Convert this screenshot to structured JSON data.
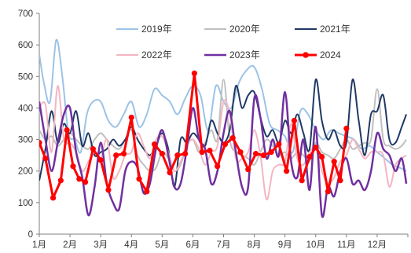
{
  "chart_data": {
    "type": "line",
    "title": "",
    "xlabel": "",
    "ylabel": "",
    "ylim": [
      0,
      700
    ],
    "yticks": [
      0,
      100,
      200,
      300,
      400,
      500,
      600,
      700
    ],
    "xlim": [
      1,
      13
    ],
    "xticks": [
      {
        "label": "1月",
        "x": 1
      },
      {
        "label": "2月",
        "x": 2
      },
      {
        "label": "3月",
        "x": 3
      },
      {
        "label": "4月",
        "x": 4
      },
      {
        "label": "5月",
        "x": 5
      },
      {
        "label": "6月",
        "x": 6
      },
      {
        "label": "7月",
        "x": 7
      },
      {
        "label": "8月",
        "x": 8
      },
      {
        "label": "9月",
        "x": 9
      },
      {
        "label": "10月",
        "x": 10
      },
      {
        "label": "11月",
        "x": 11
      },
      {
        "label": "12月",
        "x": 12
      }
    ],
    "grid": false,
    "legend_position": "top",
    "series": [
      {
        "name": "2019年",
        "color": "#9cc3e6",
        "width": 2,
        "marker": false,
        "x": [
          1.0,
          1.15,
          1.35,
          1.55,
          1.75,
          1.95,
          2.15,
          2.35,
          2.55,
          2.75,
          3.0,
          3.25,
          3.5,
          3.75,
          4.0,
          4.25,
          4.5,
          4.75,
          5.0,
          5.25,
          5.5,
          5.75,
          6.0,
          6.25,
          6.5,
          6.75,
          7.0,
          7.25,
          7.5,
          7.75,
          8.0,
          8.25,
          8.5,
          8.75,
          9.0,
          9.25,
          9.5,
          9.75,
          10.0,
          10.25,
          10.5,
          10.75,
          11.0,
          11.25,
          11.5,
          11.75,
          12.0,
          12.25,
          12.5,
          12.75,
          12.95
        ],
        "y": [
          570,
          480,
          420,
          615,
          500,
          320,
          300,
          260,
          380,
          420,
          420,
          360,
          340,
          380,
          420,
          340,
          380,
          460,
          440,
          420,
          380,
          430,
          470,
          440,
          330,
          470,
          420,
          400,
          480,
          520,
          530,
          460,
          350,
          330,
          310,
          260,
          390,
          380,
          330,
          300,
          330,
          320,
          310,
          300,
          270,
          280,
          260,
          240,
          220,
          210,
          200
        ]
      },
      {
        "name": "2020年",
        "color": "#bfbfbf",
        "width": 2,
        "marker": false,
        "x": [
          1.0,
          1.2,
          1.4,
          1.6,
          1.8,
          2.0,
          2.2,
          2.4,
          2.6,
          2.8,
          3.0,
          3.2,
          3.4,
          3.6,
          3.8,
          4.0,
          4.2,
          4.4,
          4.6,
          4.8,
          5.0,
          5.2,
          5.4,
          5.6,
          5.8,
          6.0,
          6.2,
          6.4,
          6.6,
          6.8,
          7.0,
          7.2,
          7.4,
          7.6,
          7.8,
          8.0,
          8.2,
          8.4,
          8.6,
          8.8,
          9.0,
          9.2,
          9.4,
          9.6,
          9.8,
          10.0,
          10.2,
          10.4,
          10.6,
          10.8,
          11.0,
          11.2,
          11.4,
          11.6,
          11.8,
          12.0,
          12.2,
          12.4,
          12.6,
          12.8,
          12.95
        ],
        "y": [
          330,
          300,
          310,
          280,
          300,
          320,
          300,
          280,
          270,
          300,
          320,
          300,
          280,
          270,
          300,
          330,
          250,
          220,
          200,
          210,
          260,
          240,
          200,
          220,
          280,
          300,
          260,
          290,
          330,
          300,
          490,
          300,
          260,
          250,
          240,
          220,
          260,
          300,
          280,
          250,
          260,
          240,
          260,
          250,
          230,
          290,
          260,
          250,
          240,
          270,
          300,
          270,
          280,
          290,
          300,
          460,
          300,
          280,
          270,
          280,
          300
        ]
      },
      {
        "name": "2021年",
        "color": "#1f3864",
        "width": 2,
        "marker": false,
        "x": [
          1.0,
          1.2,
          1.4,
          1.6,
          1.8,
          2.0,
          2.2,
          2.4,
          2.6,
          2.8,
          3.0,
          3.2,
          3.4,
          3.6,
          3.8,
          4.0,
          4.2,
          4.4,
          4.6,
          4.8,
          5.0,
          5.2,
          5.4,
          5.6,
          5.8,
          6.0,
          6.2,
          6.4,
          6.6,
          6.8,
          7.0,
          7.2,
          7.4,
          7.6,
          7.8,
          8.0,
          8.2,
          8.4,
          8.6,
          8.8,
          9.0,
          9.2,
          9.4,
          9.6,
          9.8,
          10.0,
          10.2,
          10.4,
          10.6,
          10.8,
          11.0,
          11.2,
          11.4,
          11.6,
          11.8,
          12.0,
          12.2,
          12.4,
          12.6,
          12.8,
          12.95
        ],
        "y": [
          170,
          270,
          390,
          290,
          350,
          320,
          390,
          280,
          320,
          250,
          260,
          270,
          300,
          280,
          300,
          340,
          300,
          270,
          250,
          280,
          320,
          270,
          150,
          300,
          290,
          320,
          300,
          280,
          360,
          320,
          290,
          330,
          470,
          400,
          440,
          450,
          370,
          310,
          330,
          290,
          360,
          320,
          380,
          320,
          270,
          490,
          360,
          300,
          330,
          280,
          290,
          490,
          360,
          250,
          380,
          390,
          440,
          300,
          290,
          340,
          380
        ]
      },
      {
        "name": "2022年",
        "color": "#f4b6c2",
        "width": 2,
        "marker": false,
        "x": [
          1.0,
          1.2,
          1.4,
          1.6,
          1.8,
          2.0,
          2.2,
          2.4,
          2.6,
          2.8,
          3.0,
          3.2,
          3.4,
          3.6,
          3.8,
          4.0,
          4.2,
          4.4,
          4.6,
          4.8,
          5.0,
          5.2,
          5.4,
          5.6,
          5.8,
          6.0,
          6.2,
          6.4,
          6.6,
          6.8,
          7.0,
          7.2,
          7.4,
          7.6,
          7.8,
          8.0,
          8.2,
          8.4,
          8.6,
          8.8,
          9.0,
          9.2,
          9.4,
          9.6,
          9.8,
          10.0,
          10.2,
          10.4,
          10.6,
          10.8,
          11.0,
          11.2,
          11.4,
          11.6,
          11.8,
          12.0,
          12.2,
          12.4,
          12.6,
          12.8,
          12.95
        ],
        "y": [
          400,
          410,
          260,
          470,
          300,
          290,
          260,
          200,
          230,
          260,
          240,
          300,
          180,
          200,
          250,
          260,
          320,
          280,
          240,
          300,
          310,
          260,
          200,
          230,
          280,
          300,
          270,
          220,
          260,
          280,
          420,
          380,
          240,
          240,
          260,
          330,
          250,
          110,
          200,
          220,
          230,
          350,
          240,
          220,
          260,
          270,
          200,
          160,
          180,
          230,
          250,
          300,
          270,
          240,
          260,
          260,
          250,
          150,
          220,
          240,
          250
        ]
      },
      {
        "name": "2023年",
        "color": "#7030a0",
        "width": 2.5,
        "marker": false,
        "x": [
          1.0,
          1.2,
          1.4,
          1.6,
          1.8,
          2.0,
          2.2,
          2.4,
          2.6,
          2.8,
          3.0,
          3.2,
          3.4,
          3.6,
          3.8,
          4.0,
          4.2,
          4.4,
          4.6,
          4.8,
          5.0,
          5.2,
          5.4,
          5.6,
          5.8,
          6.0,
          6.2,
          6.4,
          6.6,
          6.8,
          7.0,
          7.2,
          7.4,
          7.6,
          7.8,
          8.0,
          8.2,
          8.4,
          8.6,
          8.8,
          9.0,
          9.2,
          9.4,
          9.6,
          9.8,
          10.0,
          10.2,
          10.4,
          10.6,
          10.8,
          11.0,
          11.2,
          11.4,
          11.6,
          11.8,
          12.0,
          12.2,
          12.4,
          12.6,
          12.8,
          12.95
        ],
        "y": [
          420,
          300,
          200,
          290,
          380,
          400,
          260,
          180,
          60,
          150,
          290,
          160,
          100,
          80,
          200,
          230,
          210,
          130,
          160,
          270,
          330,
          250,
          150,
          160,
          270,
          400,
          300,
          270,
          160,
          200,
          320,
          390,
          260,
          150,
          150,
          430,
          370,
          240,
          300,
          250,
          450,
          230,
          180,
          300,
          140,
          340,
          60,
          150,
          120,
          200,
          240,
          160,
          170,
          140,
          200,
          320,
          270,
          250,
          200,
          240,
          160
        ]
      },
      {
        "name": "2024",
        "color": "#ff0000",
        "width": 3,
        "marker": true,
        "x": [
          1.0,
          1.2,
          1.45,
          1.7,
          1.9,
          2.1,
          2.3,
          2.5,
          2.75,
          3.0,
          3.25,
          3.5,
          3.75,
          4.0,
          4.25,
          4.5,
          4.75,
          5.0,
          5.25,
          5.5,
          5.75,
          6.05,
          6.3,
          6.55,
          6.8,
          7.05,
          7.3,
          7.55,
          7.8,
          8.05,
          8.3,
          8.55,
          8.8,
          9.05,
          9.3,
          9.55,
          9.8,
          10.0,
          10.2,
          10.4,
          10.6,
          10.8,
          11.0
        ],
        "y": [
          290,
          240,
          115,
          170,
          330,
          215,
          175,
          165,
          270,
          235,
          140,
          250,
          255,
          370,
          175,
          135,
          285,
          255,
          195,
          250,
          255,
          510,
          260,
          265,
          215,
          285,
          305,
          260,
          205,
          255,
          250,
          260,
          285,
          200,
          360,
          170,
          245,
          275,
          245,
          135,
          230,
          170,
          335
        ]
      }
    ]
  }
}
